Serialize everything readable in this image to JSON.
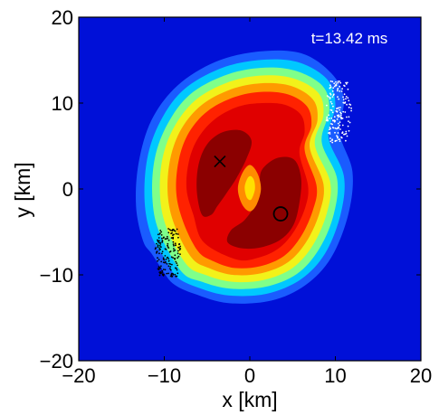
{
  "chart_data": {
    "type": "heatmap",
    "title": "",
    "xlabel": "x [km]",
    "ylabel": "y [km]",
    "xlim": [
      -20,
      20
    ],
    "ylim": [
      -20,
      20
    ],
    "xticks": [
      -20,
      -10,
      0,
      10,
      20
    ],
    "yticks": [
      -20,
      -10,
      0,
      10,
      20
    ],
    "x_tick_labels": [
      "−20",
      "−10",
      "0",
      "10",
      "20"
    ],
    "y_tick_labels": [
      "−20",
      "−10",
      "0",
      "10",
      "20"
    ],
    "annotation": "t=13.42 ms",
    "background_color": "#0010d8",
    "contour_levels": [
      {
        "level": 1,
        "color": "#1a5cff",
        "points": [
          [
            -12.5,
            -6
          ],
          [
            -13.3,
            -2
          ],
          [
            -13,
            3
          ],
          [
            -11.5,
            8
          ],
          [
            -8.5,
            12
          ],
          [
            -4,
            14.8
          ],
          [
            1,
            16
          ],
          [
            6,
            15.8
          ],
          [
            9.5,
            13.5
          ],
          [
            11,
            10.5
          ],
          [
            10.5,
            6.5
          ],
          [
            12,
            2
          ],
          [
            11.5,
            -3
          ],
          [
            9.5,
            -8
          ],
          [
            6.5,
            -11.2
          ],
          [
            2.5,
            -13
          ],
          [
            -2.5,
            -13.3
          ],
          [
            -6.5,
            -12.2
          ],
          [
            -9,
            -11
          ],
          [
            -10.5,
            -9
          ],
          [
            -11.5,
            -7.5
          ]
        ]
      },
      {
        "level": 2,
        "color": "#00c8ff",
        "points": [
          [
            -11.5,
            -5.5
          ],
          [
            -12.3,
            -1.5
          ],
          [
            -12,
            3.5
          ],
          [
            -10.5,
            7.8
          ],
          [
            -7.8,
            11.5
          ],
          [
            -3.5,
            14
          ],
          [
            1,
            15
          ],
          [
            5.5,
            14.8
          ],
          [
            9,
            12.8
          ],
          [
            10,
            9.8
          ],
          [
            9.2,
            6
          ],
          [
            11,
            1.5
          ],
          [
            10.6,
            -3
          ],
          [
            8.8,
            -7.5
          ],
          [
            6,
            -10.5
          ],
          [
            2,
            -12.2
          ],
          [
            -2.5,
            -12.4
          ],
          [
            -6,
            -11.5
          ],
          [
            -8.5,
            -10.3
          ],
          [
            -9.8,
            -8.3
          ]
        ]
      },
      {
        "level": 3,
        "color": "#7fff8a",
        "points": [
          [
            -10.6,
            -5
          ],
          [
            -11.4,
            -1
          ],
          [
            -11.1,
            3.6
          ],
          [
            -9.6,
            7.6
          ],
          [
            -7,
            11
          ],
          [
            -3,
            13.2
          ],
          [
            1.2,
            14.1
          ],
          [
            5.2,
            13.8
          ],
          [
            8.5,
            12
          ],
          [
            9.3,
            9.2
          ],
          [
            8.4,
            5.5
          ],
          [
            10.2,
            1.2
          ],
          [
            9.8,
            -3
          ],
          [
            8.1,
            -7
          ],
          [
            5.5,
            -9.9
          ],
          [
            1.8,
            -11.4
          ],
          [
            -2.3,
            -11.6
          ],
          [
            -5.6,
            -10.8
          ],
          [
            -8,
            -9.6
          ]
        ]
      },
      {
        "level": 4,
        "color": "#f2f21a",
        "points": [
          [
            -9.7,
            -4.6
          ],
          [
            -10.5,
            -0.8
          ],
          [
            -10.2,
            3.6
          ],
          [
            -8.8,
            7.3
          ],
          [
            -6.3,
            10.4
          ],
          [
            -2.6,
            12.4
          ],
          [
            1.2,
            13.2
          ],
          [
            5,
            12.9
          ],
          [
            8,
            11.2
          ],
          [
            8.6,
            8.6
          ],
          [
            7.6,
            5.2
          ],
          [
            9.4,
            0.8
          ],
          [
            9,
            -2.8
          ],
          [
            7.4,
            -6.5
          ],
          [
            5,
            -9.2
          ],
          [
            1.6,
            -10.6
          ],
          [
            -2.1,
            -10.8
          ],
          [
            -5.2,
            -10
          ],
          [
            -7.4,
            -8.8
          ]
        ]
      },
      {
        "level": 5,
        "color": "#ff9a00",
        "points": [
          [
            -8.8,
            -4.2
          ],
          [
            -9.6,
            -0.6
          ],
          [
            -9.3,
            3.5
          ],
          [
            -8,
            7
          ],
          [
            -5.6,
            9.8
          ],
          [
            -2.2,
            11.6
          ],
          [
            1.3,
            12.3
          ],
          [
            4.8,
            12
          ],
          [
            7.4,
            10.4
          ],
          [
            7.9,
            8
          ],
          [
            7,
            4.9
          ],
          [
            8.6,
            0.6
          ],
          [
            8.2,
            -2.6
          ],
          [
            6.7,
            -6
          ],
          [
            4.5,
            -8.5
          ],
          [
            1.4,
            -9.8
          ],
          [
            -2,
            -10
          ],
          [
            -4.8,
            -9.2
          ],
          [
            -6.8,
            -8
          ]
        ]
      },
      {
        "level": 6,
        "color": "#ff2200",
        "points": [
          [
            -7.8,
            -3.8
          ],
          [
            -8.6,
            -0.4
          ],
          [
            -8.3,
            3.4
          ],
          [
            -7.1,
            6.6
          ],
          [
            -4.9,
            9.1
          ],
          [
            -1.8,
            10.7
          ],
          [
            1.4,
            11.3
          ],
          [
            4.5,
            11
          ],
          [
            6.7,
            9.6
          ],
          [
            7.2,
            7.4
          ],
          [
            6.4,
            4.6
          ],
          [
            7.8,
            0.4
          ],
          [
            7.4,
            -2.4
          ],
          [
            6,
            -5.5
          ],
          [
            4,
            -7.8
          ],
          [
            1.2,
            -9
          ],
          [
            -1.8,
            -9.2
          ],
          [
            -4.3,
            -8.4
          ],
          [
            -6.1,
            -7.2
          ]
        ]
      },
      {
        "level": 7,
        "color": "#e00000",
        "points": [
          [
            -6.6,
            -3
          ],
          [
            -7.4,
            0
          ],
          [
            -7.1,
            3.3
          ],
          [
            -6,
            6
          ],
          [
            -4,
            8.2
          ],
          [
            -1.3,
            9.6
          ],
          [
            1.5,
            10
          ],
          [
            4.1,
            9.8
          ],
          [
            6,
            8.6
          ],
          [
            6.4,
            6.6
          ],
          [
            5.8,
            4.2
          ],
          [
            6.8,
            0.4
          ],
          [
            6.5,
            -2.1
          ],
          [
            5.2,
            -4.9
          ],
          [
            3.4,
            -6.9
          ],
          [
            1,
            -8
          ],
          [
            -1.6,
            -8.2
          ],
          -3.8,
          [
            -5.4,
            -6.2
          ]
        ]
      },
      {
        "level": 8,
        "color": "#8b0000",
        "points": [
          [
            -5.6,
            -3
          ],
          [
            -6.2,
            -0.2
          ],
          [
            -6,
            2.8
          ],
          [
            -5,
            5.2
          ],
          [
            -3.2,
            6.6
          ],
          [
            -1,
            6.8
          ],
          [
            0.2,
            5.6
          ],
          [
            -0.4,
            3.5
          ],
          [
            -1.6,
            1.2
          ],
          [
            -2.8,
            -0.6
          ],
          [
            -3.8,
            -2
          ],
          [
            -4.5,
            -3
          ]
        ]
      },
      {
        "level": 9,
        "color": "#8b0000",
        "points": [
          [
            1.4,
            2.2
          ],
          [
            3.2,
            3.6
          ],
          [
            5.2,
            3.4
          ],
          [
            6,
            1.2
          ],
          [
            5.8,
            -1.6
          ],
          [
            5.1,
            -4.2
          ],
          [
            3.6,
            -5.9
          ],
          [
            1.3,
            -6.8
          ],
          [
            -1,
            -6.9
          ],
          [
            -2.6,
            -6.2
          ],
          [
            -2.2,
            -4.8
          ],
          [
            -0.6,
            -3.6
          ],
          [
            0.6,
            -1.8
          ],
          [
            1.1,
            0.2
          ]
        ]
      },
      {
        "level": 10,
        "color": "#ff8c00",
        "points": [
          [
            -0.9,
            -1.8
          ],
          [
            -1.4,
            0
          ],
          [
            -0.9,
            1.8
          ],
          [
            0,
            2.8
          ],
          [
            0.9,
            1.8
          ],
          [
            1.3,
            0
          ],
          [
            0.8,
            -1.8
          ],
          [
            0,
            -2.6
          ]
        ]
      },
      {
        "level": 11,
        "color": "#ffe000",
        "points": [
          [
            -0.4,
            -0.9
          ],
          [
            -0.6,
            0.2
          ],
          [
            -0.3,
            1.2
          ],
          [
            0.1,
            1.5
          ],
          [
            0.5,
            1
          ],
          [
            0.6,
            0
          ],
          [
            0.3,
            -1
          ],
          [
            0,
            -1.3
          ]
        ]
      }
    ],
    "markers": [
      {
        "symbol": "x",
        "x": -3.5,
        "y": 3.2,
        "color": "#000000"
      },
      {
        "symbol": "circle",
        "x": 3.6,
        "y": -2.9,
        "color": "#000000"
      }
    ],
    "particle_clusters": [
      {
        "color": "#ffffff",
        "count": 160,
        "center": [
          10.4,
          9.0
        ],
        "extent": [
          1.6,
          3.6
        ],
        "seed": 7
      },
      {
        "color": "#000000",
        "count": 170,
        "center": [
          -9.6,
          -7.4
        ],
        "extent": [
          1.6,
          2.8
        ],
        "seed": 13
      }
    ],
    "grid": false,
    "legend": "none"
  }
}
